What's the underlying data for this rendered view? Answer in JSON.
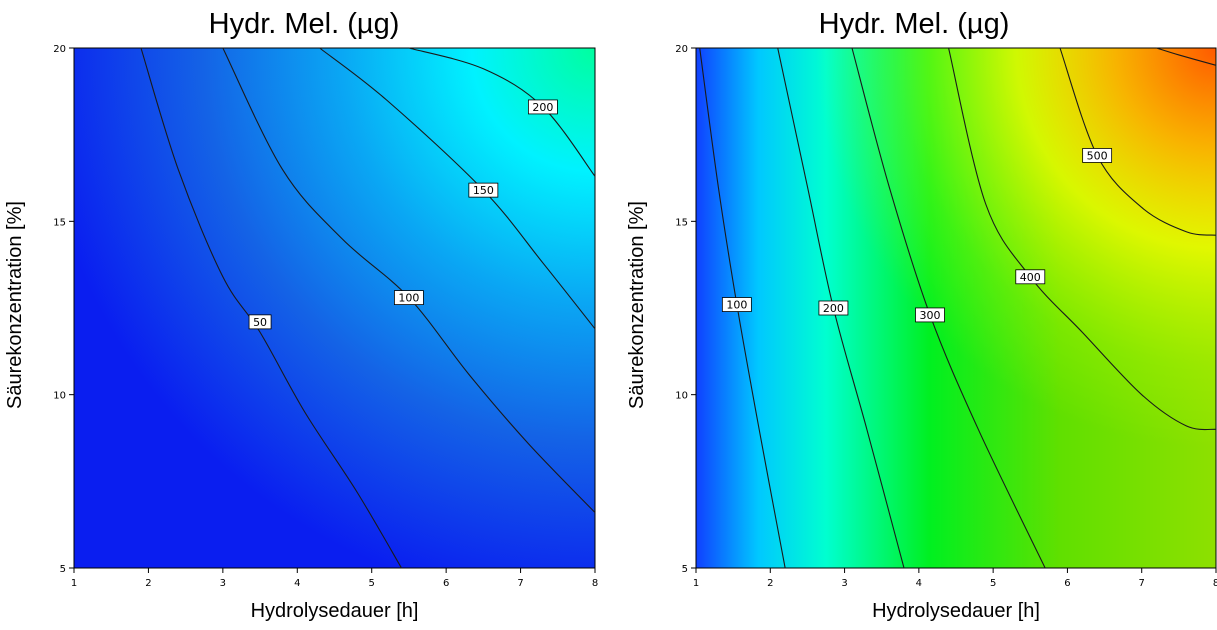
{
  "chart_data": [
    {
      "type": "heatmap",
      "subtype": "contour",
      "title": "Hydr. Mel. (µg)",
      "xlabel": "Hydrolysedauer [h]",
      "ylabel": "Säurekonzentration [%]",
      "xlim": [
        1,
        8
      ],
      "ylim": [
        5,
        20
      ],
      "xticks": [
        1,
        2,
        3,
        4,
        5,
        6,
        7,
        8
      ],
      "yticks": [
        5,
        10,
        15,
        20
      ],
      "colorscale": [
        "#0000ff",
        "#00ffff",
        "#00ff00",
        "#ffff00",
        "#ff6600",
        "#ff0000"
      ],
      "contours": [
        {
          "level": 50,
          "label": "50",
          "points": [
            [
              1.9,
              20
            ],
            [
              2.4,
              16.5
            ],
            [
              3.0,
              13.4
            ],
            [
              3.5,
              11.8
            ],
            [
              4.1,
              9.5
            ],
            [
              4.8,
              7.2
            ],
            [
              5.4,
              5
            ]
          ],
          "label_at": [
            3.5,
            12.1
          ]
        },
        {
          "level": 100,
          "label": "100",
          "points": [
            [
              3.0,
              20
            ],
            [
              3.8,
              16.5
            ],
            [
              4.6,
              14.5
            ],
            [
              5.5,
              12.8
            ],
            [
              6.3,
              10.6
            ],
            [
              7.1,
              8.6
            ],
            [
              8,
              6.6
            ]
          ],
          "label_at": [
            5.5,
            12.8
          ]
        },
        {
          "level": 150,
          "label": "150",
          "points": [
            [
              4.3,
              20
            ],
            [
              5.2,
              18.5
            ],
            [
              6.5,
              15.9
            ],
            [
              7.3,
              13.8
            ],
            [
              8,
              11.9
            ]
          ],
          "label_at": [
            6.5,
            15.9
          ]
        },
        {
          "level": 200,
          "label": "200",
          "points": [
            [
              5.5,
              20
            ],
            [
              6.5,
              19.4
            ],
            [
              7.3,
              18.3
            ],
            [
              8,
              16.3
            ]
          ],
          "label_at": [
            7.3,
            18.3
          ]
        }
      ]
    },
    {
      "type": "heatmap",
      "subtype": "contour",
      "title": "Hydr. Mel. (µg)",
      "xlabel": "Hydrolysedauer [h]",
      "ylabel": "Säurekonzentration [%]",
      "xlim": [
        1,
        8
      ],
      "ylim": [
        5,
        20
      ],
      "xticks": [
        1,
        2,
        3,
        4,
        5,
        6,
        7,
        8
      ],
      "yticks": [
        5,
        10,
        15,
        20
      ],
      "colorscale": [
        "#0000ff",
        "#00ffff",
        "#00ff00",
        "#ffff00",
        "#ff6600",
        "#ff0000"
      ],
      "contours": [
        {
          "level": 100,
          "label": "100",
          "points": [
            [
              1.05,
              20
            ],
            [
              1.3,
              16
            ],
            [
              1.55,
              12.6
            ],
            [
              1.85,
              9
            ],
            [
              2.2,
              5
            ]
          ],
          "label_at": [
            1.55,
            12.6
          ]
        },
        {
          "level": 200,
          "label": "200",
          "points": [
            [
              2.1,
              20
            ],
            [
              2.5,
              16
            ],
            [
              2.85,
              12.5
            ],
            [
              3.3,
              9
            ],
            [
              3.8,
              5
            ]
          ],
          "label_at": [
            2.85,
            12.5
          ]
        },
        {
          "level": 300,
          "label": "300",
          "points": [
            [
              3.1,
              20
            ],
            [
              3.6,
              16
            ],
            [
              4.15,
              12.3
            ],
            [
              4.8,
              9
            ],
            [
              5.7,
              5
            ]
          ],
          "label_at": [
            4.15,
            12.3
          ]
        },
        {
          "level": 400,
          "label": "400",
          "points": [
            [
              4.4,
              20
            ],
            [
              4.9,
              15.5
            ],
            [
              5.5,
              13.4
            ],
            [
              6.2,
              11.8
            ],
            [
              7.0,
              10.0
            ],
            [
              7.6,
              9.1
            ],
            [
              8,
              9.0
            ]
          ],
          "label_at": [
            5.5,
            13.4
          ]
        },
        {
          "level": 500,
          "label": "500",
          "points": [
            [
              5.9,
              20
            ],
            [
              6.4,
              16.9
            ],
            [
              7.0,
              15.4
            ],
            [
              7.6,
              14.7
            ],
            [
              8,
              14.6
            ]
          ],
          "label_at": [
            6.4,
            16.9
          ]
        },
        {
          "level": 600,
          "label": "",
          "points": [
            [
              7.2,
              20
            ],
            [
              7.5,
              19.8
            ],
            [
              8,
              19.5
            ]
          ],
          "label_at": null
        }
      ]
    }
  ]
}
